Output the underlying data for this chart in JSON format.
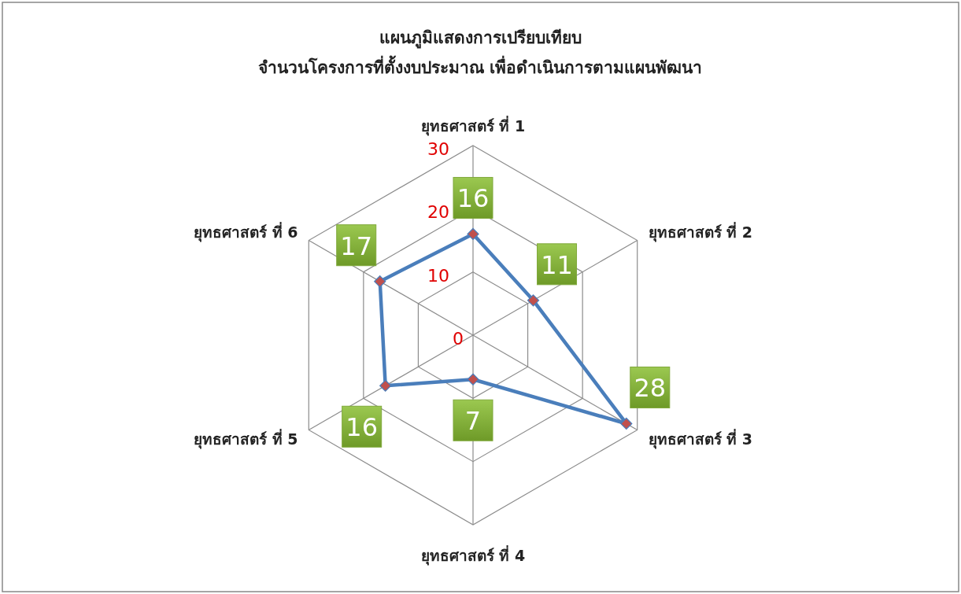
{
  "chart_data": {
    "type": "radar",
    "title": "แผนภูมิแสดงการเปรียบเทียบ\nจำนวนโครงการที่ตั้งงบประมาณ เพื่อดำเนินการตามแผนพัฒนา",
    "categories": [
      "ยุทธศาสตร์ ที่ 1",
      "ยุทธศาสตร์ ที่ 2",
      "ยุทธศาสตร์ ที่ 3",
      "ยุทธศาสตร์ ที่ 4",
      "ยุทธศาสตร์ ที่ 5",
      "ยุทธศาสตร์ ที่ 6"
    ],
    "series": [
      {
        "color": "#4a7ebb",
        "values": [
          16,
          11,
          28,
          7,
          16,
          17
        ]
      }
    ],
    "ylim": [
      0,
      30
    ],
    "yticks": [
      0,
      10,
      20,
      30
    ],
    "grid": true,
    "marker": "diamond",
    "data_labels": true
  }
}
